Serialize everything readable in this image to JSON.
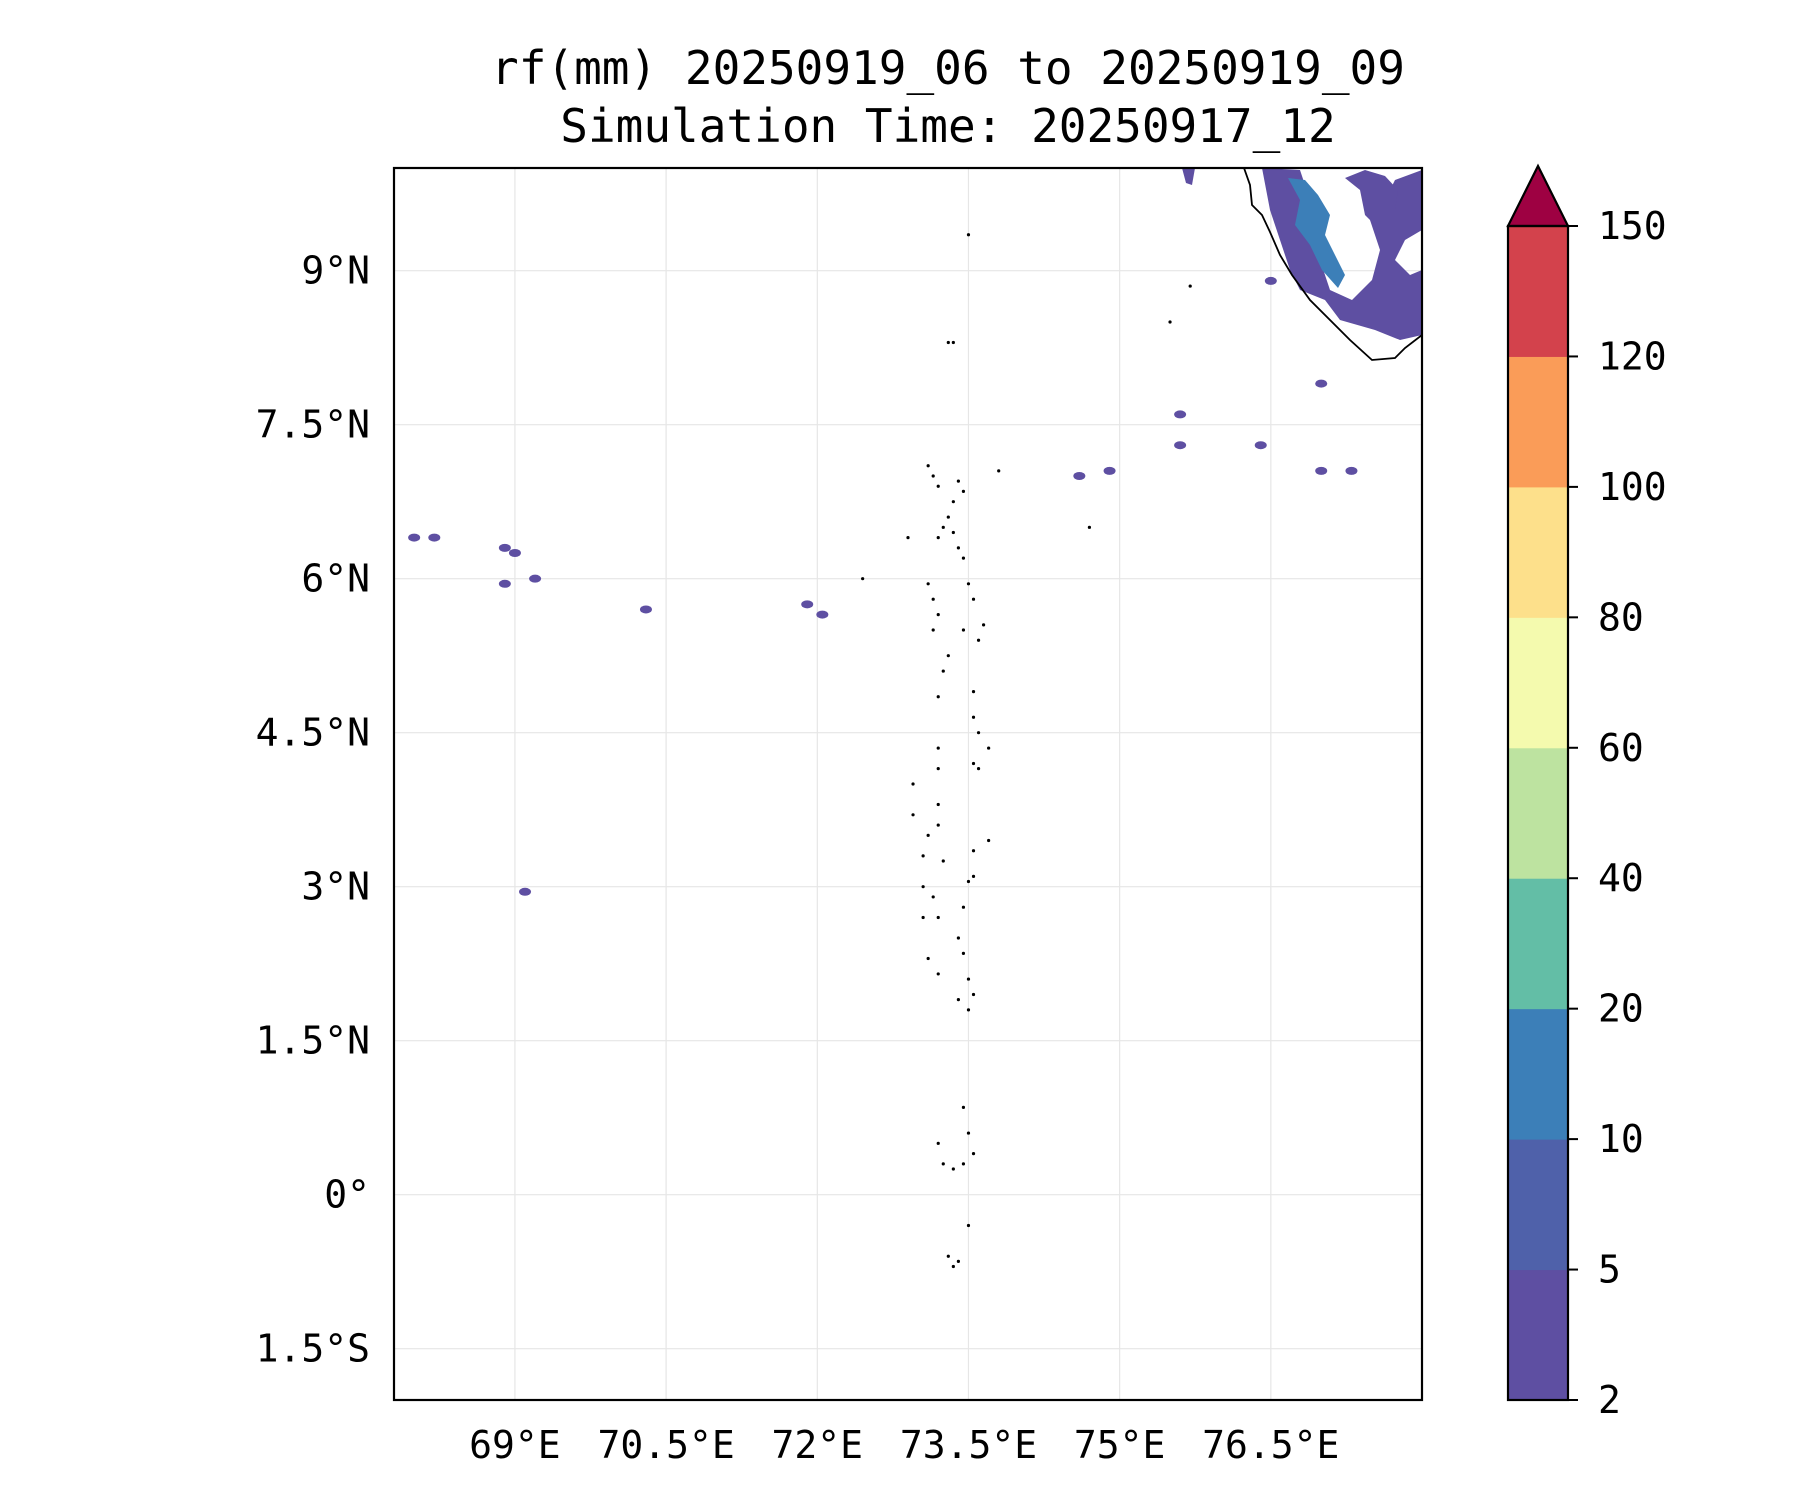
{
  "title": {
    "line1": "rf(mm) 20250919_06 to 20250919_09",
    "line2": "Simulation Time: 20250917_12"
  },
  "map": {
    "lon_range": [
      67.8,
      78.0
    ],
    "lat_range": [
      -2.0,
      10.0
    ],
    "x_ticks": [
      {
        "value": 69.0,
        "label": "69°E"
      },
      {
        "value": 70.5,
        "label": "70.5°E"
      },
      {
        "value": 72.0,
        "label": "72°E"
      },
      {
        "value": 73.5,
        "label": "73.5°E"
      },
      {
        "value": 75.0,
        "label": "75°E"
      },
      {
        "value": 76.5,
        "label": "76.5°E"
      }
    ],
    "y_ticks": [
      {
        "value": 9.0,
        "label": "9°N"
      },
      {
        "value": 7.5,
        "label": "7.5°N"
      },
      {
        "value": 6.0,
        "label": "6°N"
      },
      {
        "value": 4.5,
        "label": "4.5°N"
      },
      {
        "value": 3.0,
        "label": "3°N"
      },
      {
        "value": 1.5,
        "label": "1.5°N"
      },
      {
        "value": 0.0,
        "label": "0°"
      },
      {
        "value": -1.5,
        "label": "1.5°S"
      }
    ],
    "grid": true,
    "grid_color": "#e6e6e6"
  },
  "colorbar": {
    "levels": [
      2,
      5,
      10,
      20,
      40,
      60,
      80,
      100,
      120,
      150
    ],
    "labels": [
      "2",
      "5",
      "10",
      "20",
      "40",
      "60",
      "80",
      "100",
      "120",
      "150"
    ],
    "colors": [
      "#5e4fa2",
      "#4f61aa",
      "#3c7fb8",
      "#63bea6",
      "#bde3a0",
      "#f4faae",
      "#fde08b",
      "#fa9c58",
      "#d3424c"
    ],
    "extend_color": "#9e0142",
    "extend": "max"
  },
  "rain_cells": [
    {
      "lon": 68.0,
      "lat": 6.4,
      "level": "2-5"
    },
    {
      "lon": 68.2,
      "lat": 6.4,
      "level": "2-5"
    },
    {
      "lon": 68.9,
      "lat": 6.3,
      "level": "2-5"
    },
    {
      "lon": 69.0,
      "lat": 6.25,
      "level": "2-5"
    },
    {
      "lon": 69.2,
      "lat": 6.0,
      "level": "2-5"
    },
    {
      "lon": 68.9,
      "lat": 5.95,
      "level": "2-5"
    },
    {
      "lon": 70.3,
      "lat": 5.7,
      "level": "2-5"
    },
    {
      "lon": 71.9,
      "lat": 5.75,
      "level": "2-5"
    },
    {
      "lon": 72.05,
      "lat": 5.65,
      "level": "2-5"
    },
    {
      "lon": 74.6,
      "lat": 7.0,
      "level": "2-5"
    },
    {
      "lon": 74.9,
      "lat": 7.05,
      "level": "2-5"
    },
    {
      "lon": 75.6,
      "lat": 7.6,
      "level": "2-5"
    },
    {
      "lon": 75.6,
      "lat": 7.3,
      "level": "2-5"
    },
    {
      "lon": 76.4,
      "lat": 7.3,
      "level": "2-5"
    },
    {
      "lon": 77.0,
      "lat": 7.05,
      "level": "2-5"
    },
    {
      "lon": 77.3,
      "lat": 7.05,
      "level": "2-5"
    },
    {
      "lon": 77.0,
      "lat": 7.9,
      "level": "2-5"
    },
    {
      "lon": 76.5,
      "lat": 8.9,
      "level": "2-5"
    },
    {
      "lon": 69.1,
      "lat": 2.95,
      "level": "2-5"
    }
  ]
}
